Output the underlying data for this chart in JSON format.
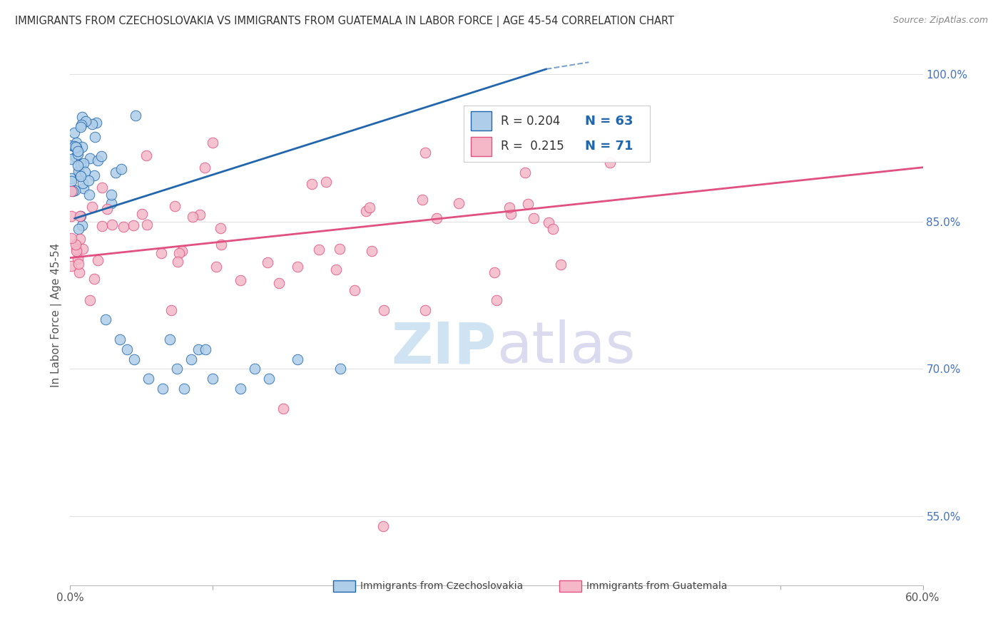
{
  "title": "IMMIGRANTS FROM CZECHOSLOVAKIA VS IMMIGRANTS FROM GUATEMALA IN LABOR FORCE | AGE 45-54 CORRELATION CHART",
  "source": "Source: ZipAtlas.com",
  "ylabel": "In Labor Force | Age 45-54",
  "watermark_zip": "ZIP",
  "watermark_atlas": "atlas",
  "xlim": [
    0.0,
    0.6
  ],
  "ylim": [
    0.48,
    1.03
  ],
  "yticks_right": [
    0.55,
    0.7,
    0.85,
    1.0
  ],
  "ytick_right_labels": [
    "55.0%",
    "70.0%",
    "85.0%",
    "100.0%"
  ],
  "legend_label1": "Immigrants from Czechoslovakia",
  "legend_label2": "Immigrants from Guatemala",
  "blue_color": "#aecde8",
  "pink_color": "#f4b8c8",
  "line_blue": "#2166ac",
  "line_pink": "#e05080",
  "blue_line_x0": 0.003,
  "blue_line_y0": 0.853,
  "blue_line_x1": 0.335,
  "blue_line_y1": 1.005,
  "pink_line_x0": 0.0,
  "pink_line_y0": 0.813,
  "pink_line_x1": 0.6,
  "pink_line_y1": 0.905,
  "background_color": "#ffffff",
  "grid_color": "#e0e0e0"
}
